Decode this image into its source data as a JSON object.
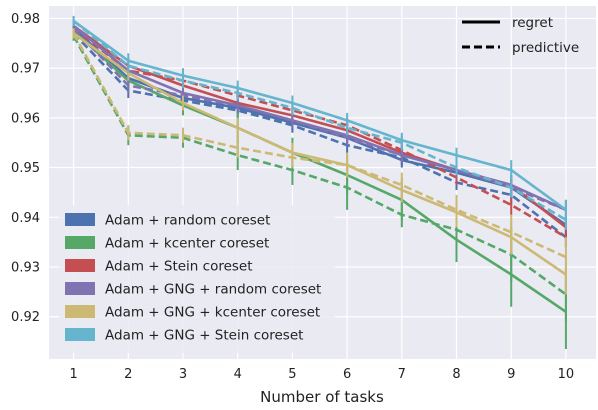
{
  "chart_data": {
    "type": "line",
    "title": "",
    "xlabel": "Number of tasks",
    "ylabel": "",
    "x": [
      1,
      2,
      3,
      4,
      5,
      6,
      7,
      8,
      9,
      10
    ],
    "xticks": [
      "1",
      "2",
      "3",
      "4",
      "5",
      "6",
      "7",
      "8",
      "9",
      "10"
    ],
    "ylim": [
      0.9115,
      0.9825
    ],
    "yticks": [
      "0.92",
      "0.93",
      "0.94",
      "0.95",
      "0.96",
      "0.97",
      "0.98"
    ],
    "ytick_values": [
      0.92,
      0.93,
      0.94,
      0.95,
      0.96,
      0.97,
      0.98
    ],
    "grid": true,
    "background": "#eaeaf2",
    "style_legend": {
      "position": "top-right",
      "entries": [
        {
          "label": "regret",
          "dash": "solid"
        },
        {
          "label": "predictive",
          "dash": "dashed"
        }
      ]
    },
    "series_legend": {
      "position": "bottom-left"
    },
    "series": [
      {
        "name": "Adam + random coreset",
        "color": "#4c72b0",
        "regret": [
          0.978,
          0.968,
          0.964,
          0.962,
          0.959,
          0.956,
          0.9515,
          0.949,
          0.946,
          0.9385
        ],
        "regret_err": [
          0.001,
          0.0015,
          0.0015,
          0.0015,
          0.0015,
          0.0015,
          0.0015,
          0.0015,
          0.002,
          0.002
        ],
        "predictive": [
          0.977,
          0.9655,
          0.9635,
          0.9615,
          0.9585,
          0.9545,
          0.952,
          0.947,
          0.9445,
          0.936
        ],
        "predictive_err": [
          0.001,
          0.0015,
          0.0015,
          0.0015,
          0.0015,
          0.0015,
          0.0015,
          0.0015,
          0.002,
          0.002
        ]
      },
      {
        "name": "Adam + kcenter coreset",
        "color": "#55a868",
        "regret": [
          0.9775,
          0.9675,
          0.9625,
          0.958,
          0.953,
          0.9485,
          0.9435,
          0.9355,
          0.9285,
          0.921
        ],
        "regret_err": [
          0.001,
          0.002,
          0.002,
          0.003,
          0.003,
          0.004,
          0.004,
          0.0045,
          0.0065,
          0.0075
        ],
        "predictive": [
          0.9765,
          0.9565,
          0.956,
          0.9525,
          0.9495,
          0.946,
          0.9405,
          0.9375,
          0.9325,
          0.9245
        ],
        "predictive_err": [
          0.001,
          0.002,
          0.002,
          0.003,
          0.003,
          0.0045,
          0.0025,
          0.005,
          0.0055,
          0.0055
        ]
      },
      {
        "name": "Adam + Stein coreset",
        "color": "#c44e52",
        "regret": [
          0.9785,
          0.9705,
          0.9665,
          0.963,
          0.9605,
          0.9575,
          0.953,
          0.9495,
          0.9465,
          0.938
        ],
        "regret_err": [
          0.001,
          0.0015,
          0.0015,
          0.0015,
          0.0015,
          0.0015,
          0.0015,
          0.0015,
          0.002,
          0.002
        ],
        "predictive": [
          0.978,
          0.9695,
          0.9675,
          0.9645,
          0.9615,
          0.9585,
          0.9535,
          0.948,
          0.9425,
          0.936
        ],
        "predictive_err": [
          0.001,
          0.0015,
          0.0015,
          0.0015,
          0.0015,
          0.0015,
          0.0015,
          0.0015,
          0.002,
          0.002
        ]
      },
      {
        "name": "Adam + GNG + random coreset",
        "color": "#8172b2",
        "regret": [
          0.9785,
          0.9695,
          0.965,
          0.9625,
          0.9595,
          0.9565,
          0.9525,
          0.9495,
          0.9465,
          0.9415
        ],
        "regret_err": [
          0.001,
          0.0015,
          0.0015,
          0.0015,
          0.0015,
          0.0015,
          0.0015,
          0.0015,
          0.002,
          0.002
        ],
        "predictive": [
          0.978,
          0.9665,
          0.9645,
          0.9625,
          0.9595,
          0.956,
          0.9525,
          0.9495,
          0.946,
          0.9415
        ],
        "predictive_err": [
          0.001,
          0.0015,
          0.0015,
          0.0015,
          0.0015,
          0.0015,
          0.0015,
          0.0015,
          0.002,
          0.002
        ]
      },
      {
        "name": "Adam + GNG + kcenter coreset",
        "color": "#ccb974",
        "regret": [
          0.977,
          0.969,
          0.963,
          0.958,
          0.953,
          0.9505,
          0.9455,
          0.941,
          0.936,
          0.9285
        ],
        "regret_err": [
          0.001,
          0.0015,
          0.0015,
          0.002,
          0.002,
          0.0025,
          0.0025,
          0.003,
          0.0035,
          0.004
        ],
        "predictive": [
          0.977,
          0.957,
          0.9565,
          0.954,
          0.952,
          0.9505,
          0.9465,
          0.9415,
          0.937,
          0.932
        ],
        "predictive_err": [
          0.001,
          0.0015,
          0.0015,
          0.002,
          0.002,
          0.0025,
          0.0025,
          0.003,
          0.0035,
          0.004
        ]
      },
      {
        "name": "Adam + GNG + Stein coreset",
        "color": "#64b5cd",
        "regret": [
          0.9795,
          0.9715,
          0.9685,
          0.966,
          0.963,
          0.9595,
          0.9555,
          0.9525,
          0.9495,
          0.9415
        ],
        "regret_err": [
          0.001,
          0.0015,
          0.0015,
          0.0015,
          0.0015,
          0.0015,
          0.0015,
          0.0015,
          0.002,
          0.002
        ],
        "predictive": [
          0.9795,
          0.9705,
          0.9675,
          0.965,
          0.962,
          0.958,
          0.955,
          0.95,
          0.946,
          0.9395
        ],
        "predictive_err": [
          0.001,
          0.0015,
          0.0015,
          0.0015,
          0.0015,
          0.0015,
          0.0015,
          0.0015,
          0.002,
          0.002
        ]
      }
    ]
  }
}
